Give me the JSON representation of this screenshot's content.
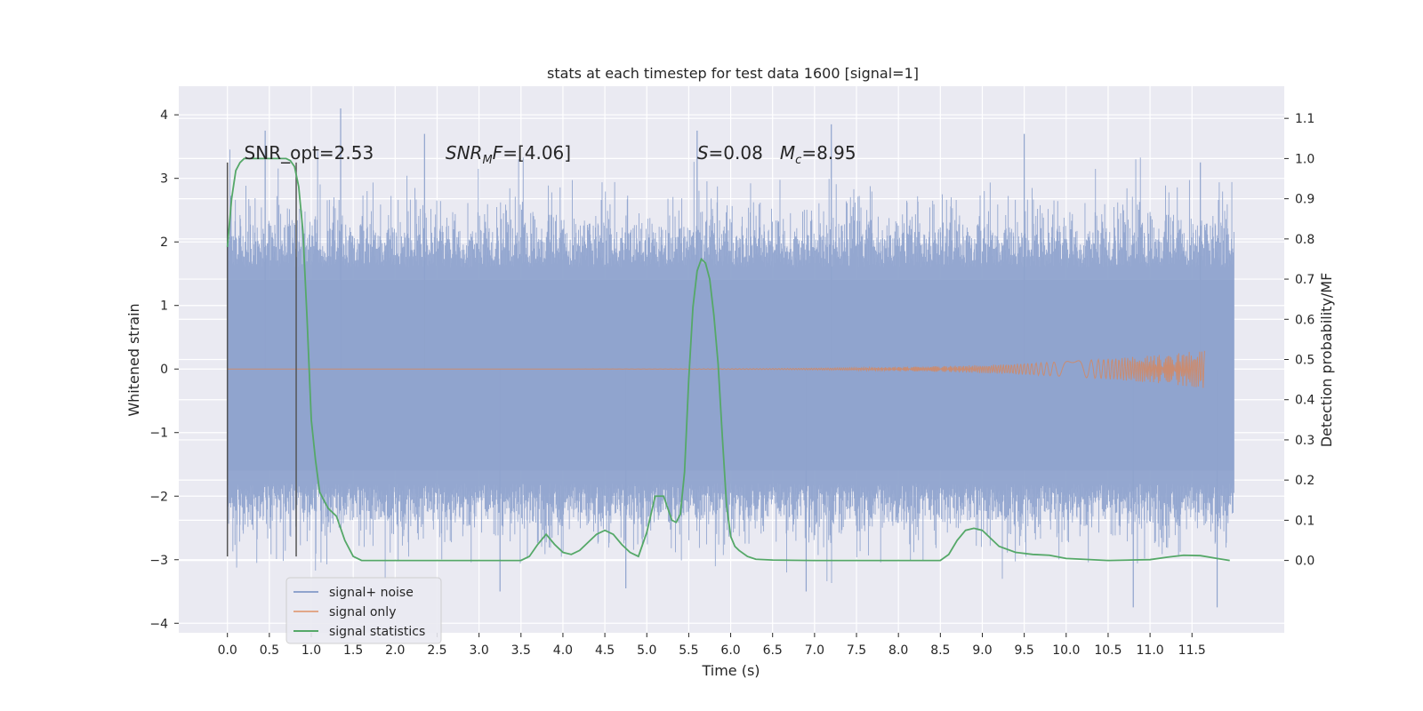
{
  "chart_data": {
    "type": "line",
    "title": "stats at each timestep for test data 1600 [signal=1]",
    "xlabel": "Time (s)",
    "ylabel_left": "Whitened strain",
    "ylabel_right": "Detection probability/MF",
    "xlim": [
      -0.58,
      12.6
    ],
    "ylim_left": [
      -4.15,
      4.45
    ],
    "ylim_right": [
      -0.18,
      1.18
    ],
    "x_ticks": [
      0.0,
      0.5,
      1.0,
      1.5,
      2.0,
      2.5,
      3.0,
      3.5,
      4.0,
      4.5,
      5.0,
      5.5,
      6.0,
      6.5,
      7.0,
      7.5,
      8.0,
      8.5,
      9.0,
      9.5,
      10.0,
      10.5,
      11.0,
      11.5
    ],
    "x_tick_labels": [
      "0.0",
      "0.5",
      "1.0",
      "1.5",
      "2.0",
      "2.5",
      "3.0",
      "3.5",
      "4.0",
      "4.5",
      "5.0",
      "5.5",
      "6.0",
      "6.5",
      "7.0",
      "7.5",
      "8.0",
      "8.5",
      "9.0",
      "9.5",
      "10.0",
      "10.5",
      "11.0",
      "11.5"
    ],
    "y_left_ticks": [
      -4,
      -3,
      -2,
      -1,
      0,
      1,
      2,
      3,
      4
    ],
    "y_left_tick_labels": [
      "−4",
      "−3",
      "−2",
      "−1",
      "0",
      "1",
      "2",
      "3",
      "4"
    ],
    "y_right_ticks": [
      0.0,
      0.1,
      0.2,
      0.3,
      0.4,
      0.5,
      0.6,
      0.7,
      0.8,
      0.9,
      1.0,
      1.1
    ],
    "y_right_tick_labels": [
      "0.0",
      "0.1",
      "0.2",
      "0.3",
      "0.4",
      "0.5",
      "0.6",
      "0.7",
      "0.8",
      "0.9",
      "1.0",
      "1.1"
    ],
    "grid": true,
    "legend_position": "lower-left",
    "annotations": [
      {
        "text": "SNR_opt=2.53",
        "x": 0.2,
        "y": 3.3
      },
      {
        "text": "SNR_MF=[4.06]",
        "x": 2.6,
        "y": 3.3,
        "main": "SNR",
        "sub": "M",
        "rest": "F=[4.06]"
      },
      {
        "text": "S=0.08   M_c=8.95",
        "x": 5.6,
        "y": 3.3,
        "main": "S",
        "rest": "=0.08",
        "main2": "M",
        "sub2": "c",
        "rest2": "=8.95"
      }
    ],
    "vertical_lines": [
      {
        "x": 0.0,
        "y_from": -2.95,
        "y_to": 3.25
      },
      {
        "x": 0.82,
        "y_from": -2.95,
        "y_to": 3.25
      }
    ],
    "series": [
      {
        "name": "signal+ noise",
        "axis": "left",
        "color": "#8fa3cd",
        "x_range": [
          0.0,
          12.0
        ],
        "band_low": -1.6,
        "band_high": 1.4,
        "extremes": [
          {
            "x": 0.45,
            "y": 3.75
          },
          {
            "x": 1.35,
            "y": 4.1
          },
          {
            "x": 2.35,
            "y": 3.7
          },
          {
            "x": 3.25,
            "y": -3.5
          },
          {
            "x": 5.6,
            "y": 3.75
          },
          {
            "x": 6.9,
            "y": -3.5
          },
          {
            "x": 7.2,
            "y": 3.85
          },
          {
            "x": 9.5,
            "y": 3.7
          },
          {
            "x": 10.8,
            "y": -3.75
          },
          {
            "x": 11.8,
            "y": -3.75
          },
          {
            "x": 11.6,
            "y": 3.25
          },
          {
            "x": 4.75,
            "y": -3.45
          }
        ]
      },
      {
        "name": "signal only",
        "axis": "left",
        "color": "#dd8452",
        "chirp": {
          "x_start": 0.0,
          "x_end": 11.65,
          "amp_end": 0.3,
          "amp_start": 0.0
        }
      },
      {
        "name": "signal statistics",
        "axis": "right",
        "color": "#55a868",
        "x": [
          0.0,
          0.05,
          0.1,
          0.15,
          0.2,
          0.3,
          0.4,
          0.5,
          0.6,
          0.7,
          0.75,
          0.8,
          0.85,
          0.9,
          0.95,
          1.0,
          1.05,
          1.1,
          1.2,
          1.3,
          1.4,
          1.5,
          1.6,
          1.7,
          2.0,
          2.5,
          3.0,
          3.5,
          3.6,
          3.7,
          3.8,
          3.9,
          4.0,
          4.1,
          4.2,
          4.3,
          4.4,
          4.5,
          4.6,
          4.7,
          4.8,
          4.9,
          5.0,
          5.1,
          5.2,
          5.25,
          5.3,
          5.35,
          5.4,
          5.45,
          5.5,
          5.55,
          5.6,
          5.65,
          5.7,
          5.75,
          5.8,
          5.85,
          5.9,
          5.95,
          6.0,
          6.05,
          6.1,
          6.2,
          6.3,
          6.5,
          7.0,
          7.5,
          8.0,
          8.5,
          8.6,
          8.7,
          8.8,
          8.9,
          9.0,
          9.1,
          9.2,
          9.4,
          9.6,
          9.8,
          10.0,
          10.5,
          11.0,
          11.2,
          11.4,
          11.6,
          11.8,
          11.95
        ],
        "y": [
          0.78,
          0.9,
          0.97,
          0.99,
          1.0,
          1.0,
          1.0,
          1.0,
          1.0,
          1.0,
          0.995,
          0.98,
          0.93,
          0.82,
          0.6,
          0.35,
          0.25,
          0.17,
          0.13,
          0.11,
          0.05,
          0.01,
          0.0,
          0.0,
          0.0,
          0.0,
          0.0,
          0.0,
          0.01,
          0.04,
          0.065,
          0.04,
          0.02,
          0.015,
          0.025,
          0.045,
          0.065,
          0.075,
          0.065,
          0.04,
          0.02,
          0.01,
          0.07,
          0.16,
          0.16,
          0.13,
          0.1,
          0.095,
          0.115,
          0.22,
          0.45,
          0.63,
          0.72,
          0.75,
          0.74,
          0.7,
          0.61,
          0.49,
          0.31,
          0.14,
          0.06,
          0.035,
          0.025,
          0.01,
          0.003,
          0.001,
          0.0,
          0.0,
          0.0,
          0.0,
          0.015,
          0.05,
          0.075,
          0.08,
          0.075,
          0.055,
          0.035,
          0.02,
          0.015,
          0.013,
          0.005,
          0.0,
          0.002,
          0.008,
          0.013,
          0.012,
          0.005,
          0.0
        ]
      }
    ]
  }
}
